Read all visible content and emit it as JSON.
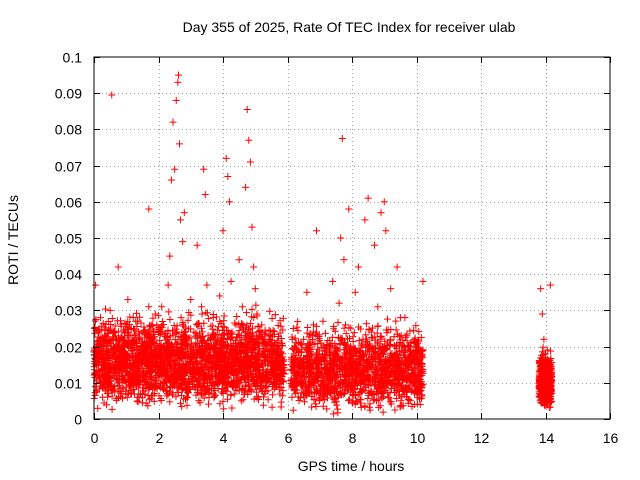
{
  "chart_data": {
    "type": "scatter",
    "title": "Day 355 of 2025, Rate Of TEC Index for receiver ulab",
    "xlabel": "GPS time / hours",
    "ylabel": "ROTI / TECUs",
    "xlim": [
      0,
      16
    ],
    "ylim": [
      0,
      0.1
    ],
    "xticks": [
      0,
      2,
      4,
      6,
      8,
      10,
      12,
      14,
      16
    ],
    "yticks": [
      0,
      0.01,
      0.02,
      0.03,
      0.04,
      0.05,
      0.06,
      0.07,
      0.08,
      0.09,
      0.1
    ],
    "xtick_labels": [
      "0",
      "2",
      "4",
      "6",
      "8",
      "10",
      "12",
      "14",
      "16"
    ],
    "ytick_labels": [
      "0",
      "0.01",
      "0.02",
      "0.03",
      "0.04",
      "0.05",
      "0.06",
      "0.07",
      "0.08",
      "0.09",
      "0.1"
    ],
    "grid": true,
    "marker": "+",
    "color": "#ff0000",
    "series": [
      {
        "name": "ROTI",
        "x": [
          0.05,
          0.12,
          0.2,
          0.35,
          0.5,
          0.55,
          0.7,
          0.75,
          0.9,
          1.05,
          1.2,
          1.35,
          1.5,
          1.7,
          1.85,
          2.0,
          2.1,
          2.2,
          2.3,
          2.35,
          2.4,
          2.45,
          2.5,
          2.55,
          2.6,
          2.62,
          2.65,
          2.68,
          2.7,
          2.75,
          2.8,
          2.9,
          3.0,
          3.1,
          3.2,
          3.3,
          3.35,
          3.4,
          3.45,
          3.5,
          3.6,
          3.7,
          3.8,
          3.9,
          4.0,
          4.1,
          4.15,
          4.2,
          4.25,
          4.3,
          4.4,
          4.5,
          4.6,
          4.7,
          4.75,
          4.8,
          4.85,
          4.9,
          4.95,
          5.0,
          5.05,
          5.1,
          5.2,
          5.3,
          5.4,
          5.5,
          5.6,
          5.7,
          5.8,
          6.2,
          6.3,
          6.5,
          6.6,
          6.8,
          6.9,
          7.1,
          7.2,
          7.4,
          7.6,
          7.65,
          7.7,
          7.75,
          7.8,
          7.9,
          8.0,
          8.1,
          8.2,
          8.3,
          8.4,
          8.5,
          8.6,
          8.7,
          8.8,
          8.9,
          9.0,
          9.05,
          9.1,
          9.2,
          9.3,
          9.4,
          9.5,
          9.6,
          9.7,
          9.8,
          9.9,
          10.0,
          10.1,
          10.2,
          13.85,
          13.9,
          13.95,
          14.0,
          14.05,
          14.1,
          14.15
        ],
        "y": [
          0.037,
          0.012,
          0.028,
          0.017,
          0.03,
          0.0895,
          0.022,
          0.042,
          0.013,
          0.033,
          0.018,
          0.027,
          0.012,
          0.058,
          0.021,
          0.014,
          0.031,
          0.019,
          0.037,
          0.045,
          0.066,
          0.082,
          0.069,
          0.088,
          0.093,
          0.095,
          0.076,
          0.055,
          0.028,
          0.049,
          0.057,
          0.017,
          0.033,
          0.024,
          0.048,
          0.013,
          0.029,
          0.069,
          0.062,
          0.037,
          0.014,
          0.028,
          0.021,
          0.034,
          0.052,
          0.072,
          0.067,
          0.06,
          0.038,
          0.019,
          0.026,
          0.044,
          0.031,
          0.064,
          0.0855,
          0.077,
          0.071,
          0.053,
          0.042,
          0.036,
          0.029,
          0.016,
          0.026,
          0.021,
          0.012,
          0.019,
          0.016,
          0.011,
          0.014,
          0.018,
          0.008,
          0.022,
          0.035,
          0.014,
          0.052,
          0.027,
          0.019,
          0.038,
          0.032,
          0.05,
          0.0775,
          0.044,
          0.026,
          0.058,
          0.016,
          0.035,
          0.042,
          0.013,
          0.055,
          0.061,
          0.024,
          0.048,
          0.031,
          0.057,
          0.06,
          0.052,
          0.021,
          0.036,
          0.017,
          0.042,
          0.028,
          0.012,
          0.023,
          0.02,
          0.016,
          0.018,
          0.011,
          0.038,
          0.036,
          0.029,
          0.022,
          0.018,
          0.012,
          0.008,
          0.037
        ]
      }
    ]
  },
  "figure": {
    "dense_bands": [
      {
        "x_from": 0.0,
        "x_to": 5.9,
        "y_from": 0.002,
        "y_to": 0.034,
        "count": 2600,
        "heavy_y": 0.018
      },
      {
        "x_from": 6.1,
        "x_to": 10.2,
        "y_from": 0.001,
        "y_to": 0.031,
        "count": 1500,
        "heavy_y": 0.016
      },
      {
        "x_from": 13.8,
        "x_to": 14.2,
        "y_from": 0.002,
        "y_to": 0.036,
        "count": 420,
        "heavy_y": 0.012
      }
    ]
  }
}
